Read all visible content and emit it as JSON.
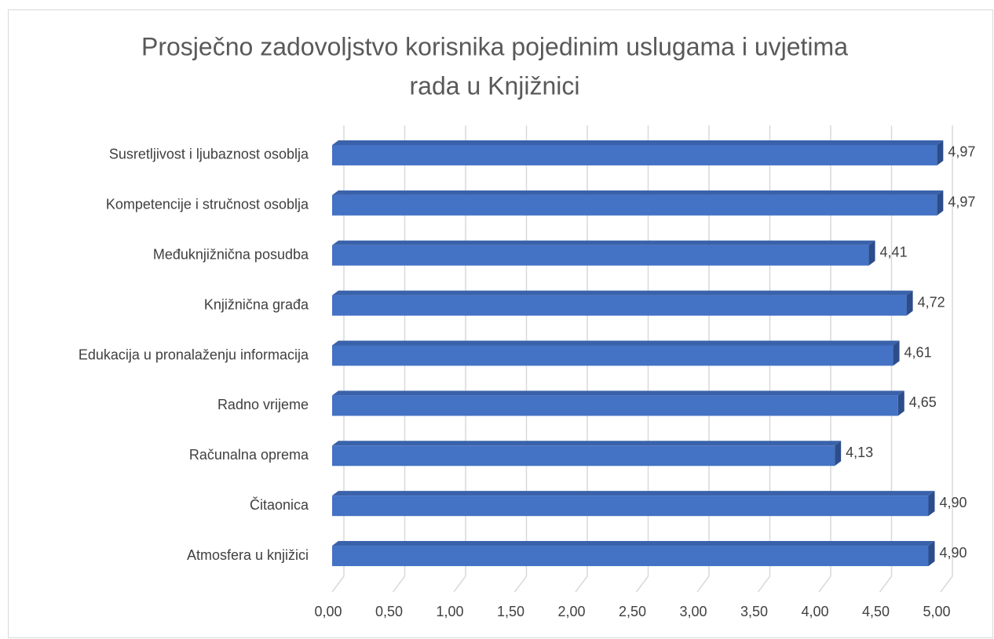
{
  "chart_data": {
    "type": "bar3d_horizontal",
    "title": "Prosječno zadovoljstvo korisnika pojedinim uslugama i uvjetima rada u Knjižnici",
    "categories": [
      "Susretljivost i ljubaznost osoblja",
      "Kompetencije i stručnost osoblja",
      "Međuknjižnična posudba",
      "Knjižnična građa",
      "Edukacija u pronalaženju informacija",
      "Radno vrijeme",
      "Računalna oprema",
      "Čitaonica",
      "Atmosfera u knjižici"
    ],
    "values": [
      4.97,
      4.97,
      4.41,
      4.72,
      4.61,
      4.65,
      4.13,
      4.9,
      4.9
    ],
    "value_labels": [
      "4,97",
      "4,97",
      "4,41",
      "4,72",
      "4,61",
      "4,65",
      "4,13",
      "4,90",
      "4,90"
    ],
    "color": "#4472c4",
    "xlim": [
      0,
      5
    ],
    "xticks": [
      {
        "value": 0,
        "label": "0,00"
      },
      {
        "value": 0.5,
        "label": "0,50"
      },
      {
        "value": 1,
        "label": "1,00"
      },
      {
        "value": 1.5,
        "label": "1,50"
      },
      {
        "value": 2,
        "label": "2,00"
      },
      {
        "value": 2.5,
        "label": "2,50"
      },
      {
        "value": 3,
        "label": "3,00"
      },
      {
        "value": 3.5,
        "label": "3,50"
      },
      {
        "value": 4,
        "label": "4,00"
      },
      {
        "value": 4.5,
        "label": "4,50"
      },
      {
        "value": 5,
        "label": "5,00"
      }
    ],
    "grid": true
  }
}
